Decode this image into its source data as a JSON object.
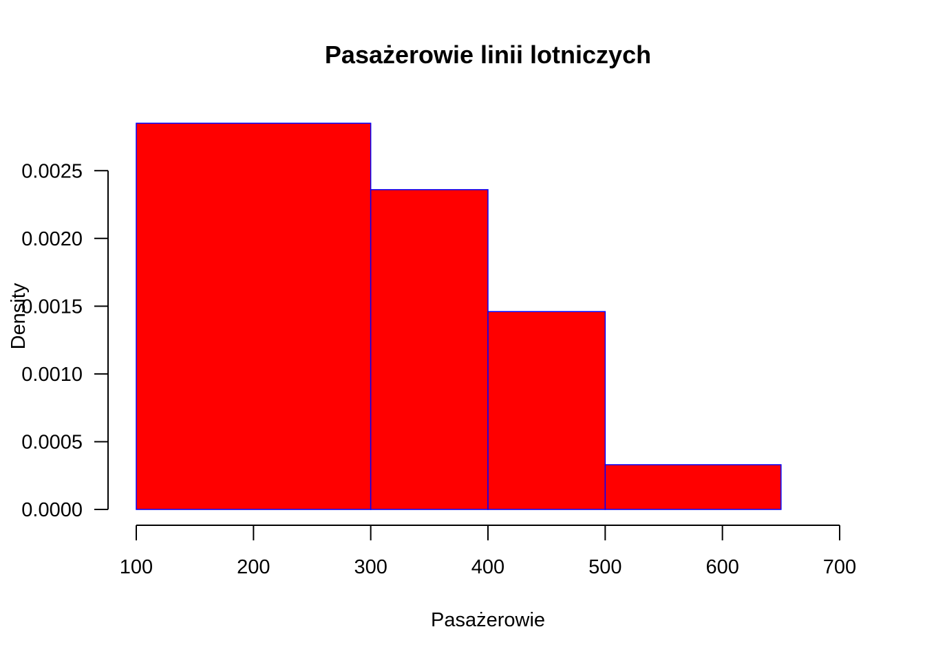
{
  "chart_data": {
    "type": "bar",
    "subtype": "histogram",
    "title": "Pasażerowie linii lotniczych",
    "xlabel": "Pasażerowie",
    "ylabel": "Density",
    "bins": [
      {
        "from": 100,
        "to": 300,
        "density": 0.00285
      },
      {
        "from": 300,
        "to": 400,
        "density": 0.00236
      },
      {
        "from": 400,
        "to": 500,
        "density": 0.00146
      },
      {
        "from": 500,
        "to": 650,
        "density": 0.00033
      }
    ],
    "xlim": [
      100,
      700
    ],
    "ylim": [
      0,
      0.0025
    ],
    "x_ticks": [
      "100",
      "200",
      "300",
      "400",
      "500",
      "600",
      "700"
    ],
    "y_ticks": [
      "0.0000",
      "0.0005",
      "0.0010",
      "0.0015",
      "0.0020",
      "0.0025"
    ],
    "grid": false,
    "fill_color": "#ff0000",
    "border_color": "#0000ff"
  }
}
